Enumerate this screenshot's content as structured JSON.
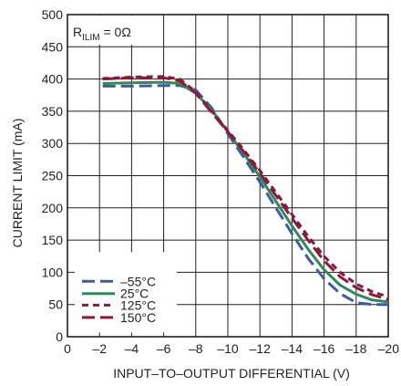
{
  "chart_data": {
    "type": "line",
    "title": "",
    "annotation": {
      "prefix": "R",
      "subscript": "ILIM",
      "suffix": " = 0Ω"
    },
    "xlabel": "INPUT–TO–OUTPUT DIFFERENTIAL (V)",
    "ylabel": "CURRENT LIMIT (mA)",
    "xlim": [
      0,
      -20
    ],
    "ylim": [
      0,
      500
    ],
    "x_ticks": [
      0,
      -2,
      -4,
      -6,
      -8,
      -10,
      -12,
      -14,
      -16,
      -18,
      -20
    ],
    "x_tick_labels": [
      "0",
      "–2",
      "–4",
      "–6",
      "–8",
      "–10",
      "–12",
      "–14",
      "–16",
      "–18",
      "–20"
    ],
    "y_ticks": [
      0,
      50,
      100,
      150,
      200,
      250,
      300,
      350,
      400,
      450,
      500
    ],
    "y_tick_labels": [
      "0",
      "50",
      "100",
      "150",
      "200",
      "250",
      "300",
      "350",
      "400",
      "450",
      "500"
    ],
    "grid": true,
    "legend_position": "bottom-left",
    "series": [
      {
        "name": "–55°C",
        "color": "#3b5ba8",
        "dash": "long-dash",
        "points": [
          [
            -2.2,
            389
          ],
          [
            -4,
            389
          ],
          [
            -6,
            390
          ],
          [
            -7,
            390
          ],
          [
            -8,
            383
          ],
          [
            -9,
            355
          ],
          [
            -10,
            315
          ],
          [
            -11,
            278
          ],
          [
            -12,
            240
          ],
          [
            -13,
            200
          ],
          [
            -14,
            160
          ],
          [
            -15,
            122
          ],
          [
            -16,
            90
          ],
          [
            -17,
            67
          ],
          [
            -18,
            53
          ],
          [
            -19,
            50
          ],
          [
            -20,
            50
          ]
        ]
      },
      {
        "name": "25°C",
        "color": "#2e8b57",
        "dash": "solid",
        "points": [
          [
            -2.2,
            393
          ],
          [
            -4,
            394
          ],
          [
            -6,
            395
          ],
          [
            -7,
            393
          ],
          [
            -8,
            378
          ],
          [
            -9,
            352
          ],
          [
            -10,
            318
          ],
          [
            -11,
            284
          ],
          [
            -12,
            248
          ],
          [
            -13,
            210
          ],
          [
            -14,
            172
          ],
          [
            -15,
            136
          ],
          [
            -16,
            104
          ],
          [
            -17,
            80
          ],
          [
            -18,
            66
          ],
          [
            -19,
            57
          ],
          [
            -20,
            54
          ]
        ]
      },
      {
        "name": "125°C",
        "color": "#8b1a3a",
        "dash": "short-dash",
        "points": [
          [
            -2.2,
            401
          ],
          [
            -4,
            403
          ],
          [
            -6,
            404
          ],
          [
            -7,
            400
          ],
          [
            -8,
            380
          ],
          [
            -9,
            350
          ],
          [
            -10,
            320
          ],
          [
            -11,
            290
          ],
          [
            -12,
            258
          ],
          [
            -13,
            224
          ],
          [
            -14,
            190
          ],
          [
            -15,
            156
          ],
          [
            -16,
            125
          ],
          [
            -17,
            100
          ],
          [
            -18,
            82
          ],
          [
            -19,
            70
          ],
          [
            -20,
            62
          ]
        ]
      },
      {
        "name": "150°C",
        "color": "#8b1a3a",
        "dash": "long-dash",
        "points": [
          [
            -2.2,
            400
          ],
          [
            -4,
            402
          ],
          [
            -6,
            402
          ],
          [
            -7,
            397
          ],
          [
            -8,
            378
          ],
          [
            -9,
            348
          ],
          [
            -10,
            318
          ],
          [
            -11,
            287
          ],
          [
            -12,
            254
          ],
          [
            -13,
            219
          ],
          [
            -14,
            184
          ],
          [
            -15,
            150
          ],
          [
            -16,
            118
          ],
          [
            -17,
            93
          ],
          [
            -18,
            76
          ],
          [
            -19,
            65
          ],
          [
            -20,
            58
          ]
        ]
      }
    ]
  }
}
